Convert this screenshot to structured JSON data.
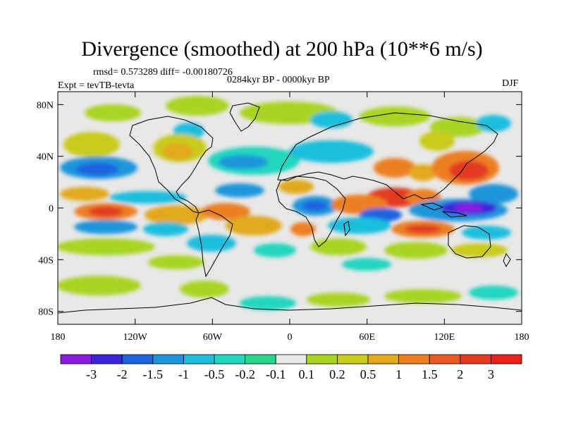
{
  "title": "Divergence (smoothed) at 200 hPa (10**6 m/s)",
  "stats_line": "rmsd= 0.573289 diff= -0.00180726",
  "period": "0284kyr BP - 0000kyr BP",
  "experiment": "Expt = tevTB-tevta",
  "season": "DJF",
  "map": {
    "lat_labels": [
      "80N",
      "40N",
      "0",
      "40S",
      "80S"
    ],
    "lat_values": [
      80,
      40,
      0,
      -40,
      -80
    ],
    "lon_labels": [
      "180",
      "120W",
      "60W",
      "0",
      "60E",
      "120E",
      "180"
    ],
    "lon_values": [
      -180,
      -120,
      -60,
      0,
      60,
      120,
      180
    ]
  },
  "colorbar": {
    "labels": [
      "-3",
      "-2",
      "-1.5",
      "-1",
      "-0.5",
      "-0.2",
      "-0.1",
      "0.1",
      "0.2",
      "0.5",
      "1",
      "1.5",
      "2",
      "3"
    ],
    "colors": [
      "#8b1ae0",
      "#3c25d8",
      "#1e63e0",
      "#1c95db",
      "#1fbede",
      "#22d6c0",
      "#27d48c",
      "#e8e8e8",
      "#a9d423",
      "#c9cb1e",
      "#e2a91a",
      "#ec7f20",
      "#e75a24",
      "#e23a21",
      "#e8211c"
    ],
    "colors_note": "15 color bins"
  }
}
